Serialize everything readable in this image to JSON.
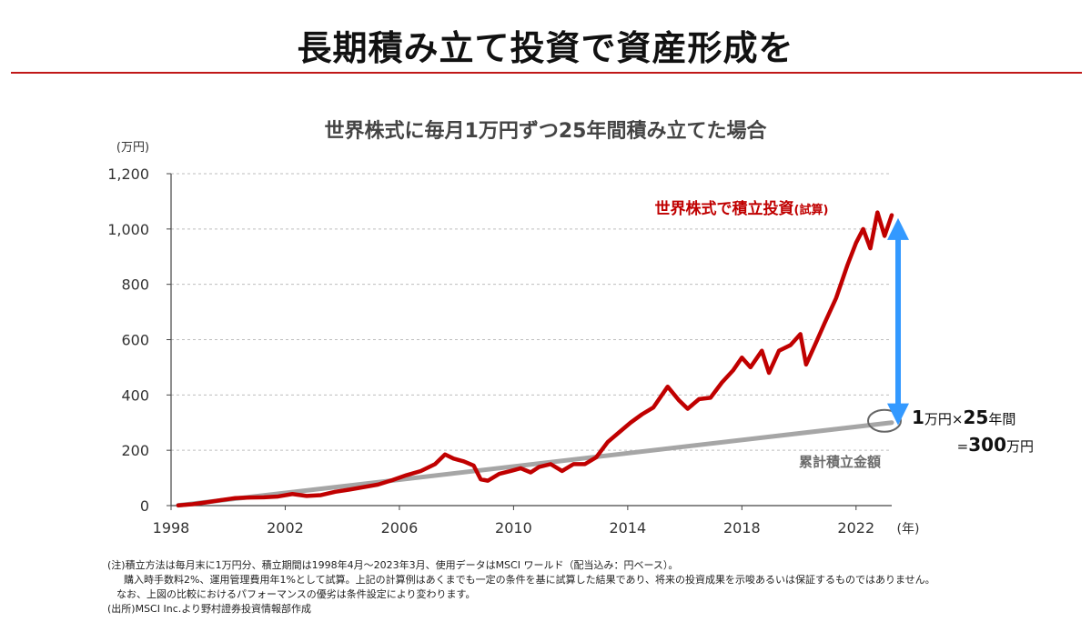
{
  "header": {
    "title": "長期積み立て投資で資産形成を"
  },
  "chart_data": {
    "type": "line",
    "title": "世界株式に毎月1万円ずつ25年間積み立てた場合",
    "ylabel": "(万円)",
    "xlabel": "(年)",
    "ylim": [
      0,
      1200
    ],
    "xlim": [
      1998,
      2023.25
    ],
    "yticks": [
      0,
      200,
      400,
      600,
      800,
      1000,
      1200
    ],
    "ytick_labels": [
      "0",
      "200",
      "400",
      "600",
      "800",
      "1,000",
      "1,200"
    ],
    "xticks": [
      1998,
      2002,
      2006,
      2010,
      2014,
      2018,
      2022
    ],
    "xtick_labels": [
      "1998",
      "2002",
      "2006",
      "2010",
      "2014",
      "2018",
      "2022"
    ],
    "grid": true,
    "series": [
      {
        "name": "世界株式で積立投資(試算)",
        "color": "#c00000",
        "points": [
          [
            1998.25,
            1
          ],
          [
            1998.75,
            5
          ],
          [
            1999.25,
            12
          ],
          [
            1999.75,
            20
          ],
          [
            2000.25,
            27
          ],
          [
            2000.75,
            29
          ],
          [
            2001.25,
            30
          ],
          [
            2001.75,
            33
          ],
          [
            2002.25,
            42
          ],
          [
            2002.75,
            35
          ],
          [
            2003.25,
            38
          ],
          [
            2003.75,
            50
          ],
          [
            2004.25,
            58
          ],
          [
            2004.75,
            67
          ],
          [
            2005.25,
            76
          ],
          [
            2005.75,
            92
          ],
          [
            2006.25,
            110
          ],
          [
            2006.75,
            125
          ],
          [
            2007.25,
            150
          ],
          [
            2007.6,
            185
          ],
          [
            2007.9,
            170
          ],
          [
            2008.25,
            160
          ],
          [
            2008.6,
            145
          ],
          [
            2008.85,
            95
          ],
          [
            2009.1,
            90
          ],
          [
            2009.5,
            115
          ],
          [
            2009.9,
            125
          ],
          [
            2010.25,
            135
          ],
          [
            2010.6,
            120
          ],
          [
            2010.9,
            140
          ],
          [
            2011.3,
            150
          ],
          [
            2011.7,
            125
          ],
          [
            2012.1,
            150
          ],
          [
            2012.5,
            150
          ],
          [
            2012.9,
            175
          ],
          [
            2013.3,
            230
          ],
          [
            2013.7,
            265
          ],
          [
            2014.1,
            300
          ],
          [
            2014.5,
            330
          ],
          [
            2014.9,
            355
          ],
          [
            2015.4,
            430
          ],
          [
            2015.8,
            380
          ],
          [
            2016.1,
            350
          ],
          [
            2016.5,
            385
          ],
          [
            2016.9,
            390
          ],
          [
            2017.3,
            445
          ],
          [
            2017.7,
            490
          ],
          [
            2018.0,
            535
          ],
          [
            2018.3,
            500
          ],
          [
            2018.7,
            560
          ],
          [
            2018.95,
            480
          ],
          [
            2019.3,
            560
          ],
          [
            2019.7,
            580
          ],
          [
            2020.05,
            620
          ],
          [
            2020.25,
            510
          ],
          [
            2020.6,
            590
          ],
          [
            2020.9,
            660
          ],
          [
            2021.3,
            750
          ],
          [
            2021.7,
            870
          ],
          [
            2022.0,
            950
          ],
          [
            2022.25,
            1000
          ],
          [
            2022.5,
            930
          ],
          [
            2022.75,
            1060
          ],
          [
            2023.0,
            975
          ],
          [
            2023.25,
            1050
          ]
        ]
      },
      {
        "name": "累計積立金額",
        "color": "#a6a6a6",
        "points": [
          [
            1998.25,
            1
          ],
          [
            2023.25,
            300
          ]
        ]
      }
    ],
    "annotations": {
      "line_label": "世界株式で積立投資",
      "line_label_suffix": "(試算)",
      "gray_label": "累計積立金額",
      "arrow_top": 1000,
      "arrow_bottom": 330,
      "circle_value": 300,
      "calc_line1": [
        {
          "t": "1",
          "big": true
        },
        {
          "t": "万円×",
          "big": false
        },
        {
          "t": "25",
          "big": true
        },
        {
          "t": "年間",
          "big": false
        }
      ],
      "calc_line2": [
        {
          "t": "=",
          "big": false
        },
        {
          "t": "300",
          "big": true
        },
        {
          "t": "万円",
          "big": false
        }
      ]
    }
  },
  "notes": {
    "line1": "(注)積立方法は毎月末に1万円分、積立期間は1998年4月～2023年3月、使用データはMSCI ワールド（配当込み：円ベース）。",
    "line2": "購入時手数料2%、運用管理費用年1%として試算。上記の計算例はあくまでも一定の条件を基に試算した結果であり、将来の投資成果を示唆あるいは保証するものではありません。",
    "line3": "なお、上図の比較におけるパフォーマンスの優劣は条件設定により変わります。",
    "line4": "(出所)MSCI Inc.より野村證券投資情報部作成"
  }
}
